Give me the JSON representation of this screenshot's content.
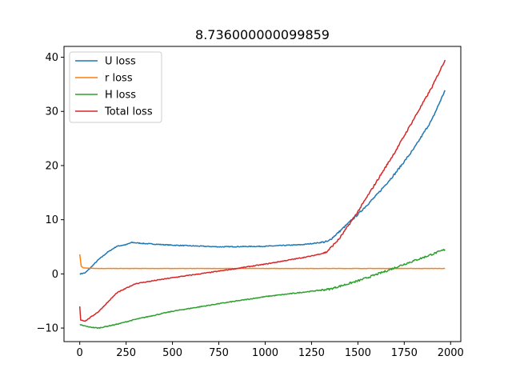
{
  "chart_data": {
    "type": "line",
    "title": "8.736000000099859",
    "xlabel": "",
    "ylabel": "",
    "xlim": [
      -85,
      2055
    ],
    "ylim": [
      -12.5,
      42
    ],
    "xticks": [
      0,
      250,
      500,
      750,
      1000,
      1250,
      1500,
      1750,
      2000
    ],
    "xtick_labels": [
      "0",
      "250",
      "500",
      "750",
      "1000",
      "1250",
      "1500",
      "1750",
      "2000"
    ],
    "yticks": [
      -10,
      0,
      10,
      20,
      30,
      40
    ],
    "ytick_labels": [
      "−10",
      "0",
      "10",
      "20",
      "30",
      "40"
    ],
    "grid": false,
    "legend_position": "top-left",
    "series": [
      {
        "name": "U loss",
        "color": "#1f77b4",
        "points": [
          [
            0,
            0
          ],
          [
            30,
            0.2
          ],
          [
            60,
            1.2
          ],
          [
            100,
            2.6
          ],
          [
            150,
            4.0
          ],
          [
            200,
            5.1
          ],
          [
            250,
            5.4
          ],
          [
            280,
            5.8
          ],
          [
            350,
            5.6
          ],
          [
            500,
            5.3
          ],
          [
            750,
            5.0
          ],
          [
            1000,
            5.1
          ],
          [
            1200,
            5.4
          ],
          [
            1300,
            5.8
          ],
          [
            1340,
            6.0
          ],
          [
            1400,
            7.8
          ],
          [
            1500,
            11.0
          ],
          [
            1600,
            14.5
          ],
          [
            1700,
            18.5
          ],
          [
            1800,
            23.0
          ],
          [
            1900,
            28.5
          ],
          [
            1970,
            33.9
          ]
        ]
      },
      {
        "name": "r loss",
        "color": "#ff7f0e",
        "points": [
          [
            0,
            3.6
          ],
          [
            8,
            1.4
          ],
          [
            20,
            1.1
          ],
          [
            100,
            1.0
          ],
          [
            500,
            1.0
          ],
          [
            1000,
            1.0
          ],
          [
            1500,
            1.0
          ],
          [
            1970,
            1.0
          ]
        ]
      },
      {
        "name": "H loss",
        "color": "#2ca02c",
        "points": [
          [
            0,
            -9.4
          ],
          [
            50,
            -9.8
          ],
          [
            100,
            -10.0
          ],
          [
            200,
            -9.3
          ],
          [
            300,
            -8.4
          ],
          [
            500,
            -6.9
          ],
          [
            750,
            -5.5
          ],
          [
            1000,
            -4.2
          ],
          [
            1250,
            -3.2
          ],
          [
            1350,
            -2.8
          ],
          [
            1500,
            -1.3
          ],
          [
            1650,
            0.5
          ],
          [
            1750,
            1.8
          ],
          [
            1850,
            3.0
          ],
          [
            1970,
            4.5
          ]
        ]
      },
      {
        "name": "Total loss",
        "color": "#d62728",
        "points": [
          [
            0,
            -6.0
          ],
          [
            5,
            -8.5
          ],
          [
            30,
            -8.7
          ],
          [
            100,
            -7.0
          ],
          [
            200,
            -3.5
          ],
          [
            300,
            -1.8
          ],
          [
            500,
            -0.7
          ],
          [
            750,
            0.5
          ],
          [
            1000,
            1.8
          ],
          [
            1250,
            3.3
          ],
          [
            1330,
            4.0
          ],
          [
            1400,
            6.5
          ],
          [
            1500,
            11.5
          ],
          [
            1600,
            17.0
          ],
          [
            1700,
            22.5
          ],
          [
            1800,
            28.5
          ],
          [
            1900,
            34.5
          ],
          [
            1970,
            39.5
          ]
        ]
      }
    ]
  }
}
